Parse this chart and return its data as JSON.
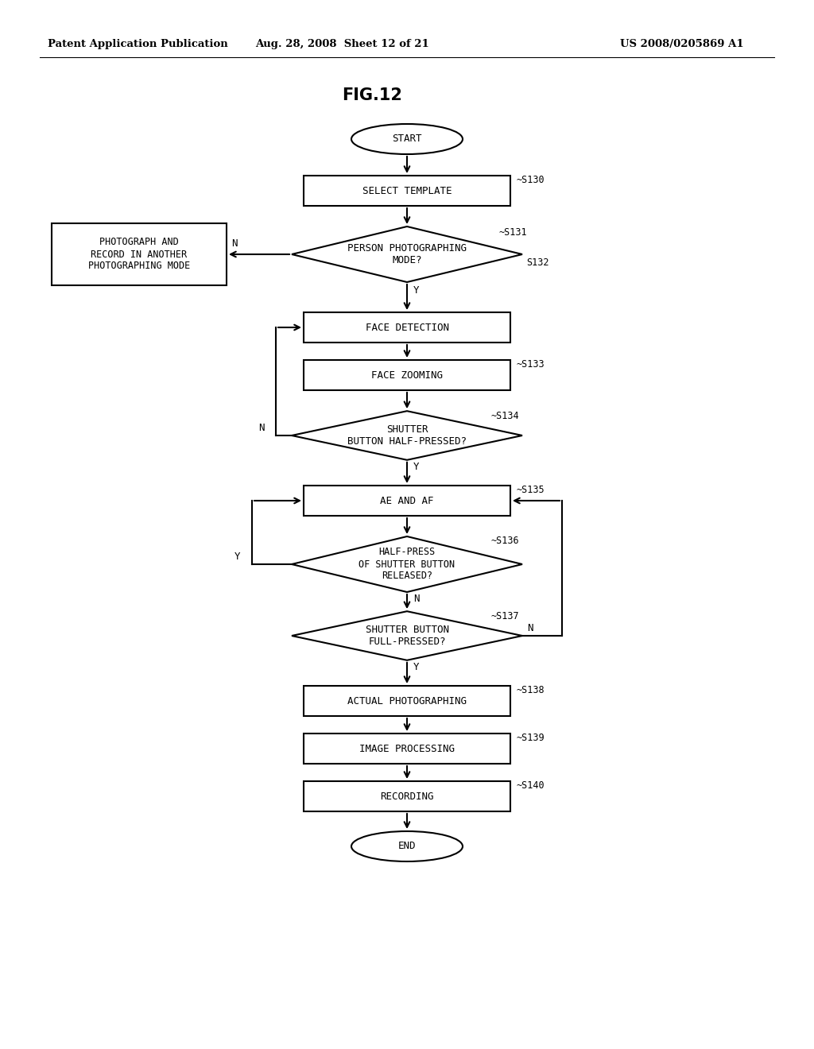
{
  "title": "FIG.12",
  "header_left": "Patent Application Publication",
  "header_center": "Aug. 28, 2008  Sheet 12 of 21",
  "header_right": "US 2008/0205869 A1",
  "bg_color": "#ffffff",
  "text_color": "#000000",
  "fig_width": 10.24,
  "fig_height": 13.2,
  "dpi": 100
}
